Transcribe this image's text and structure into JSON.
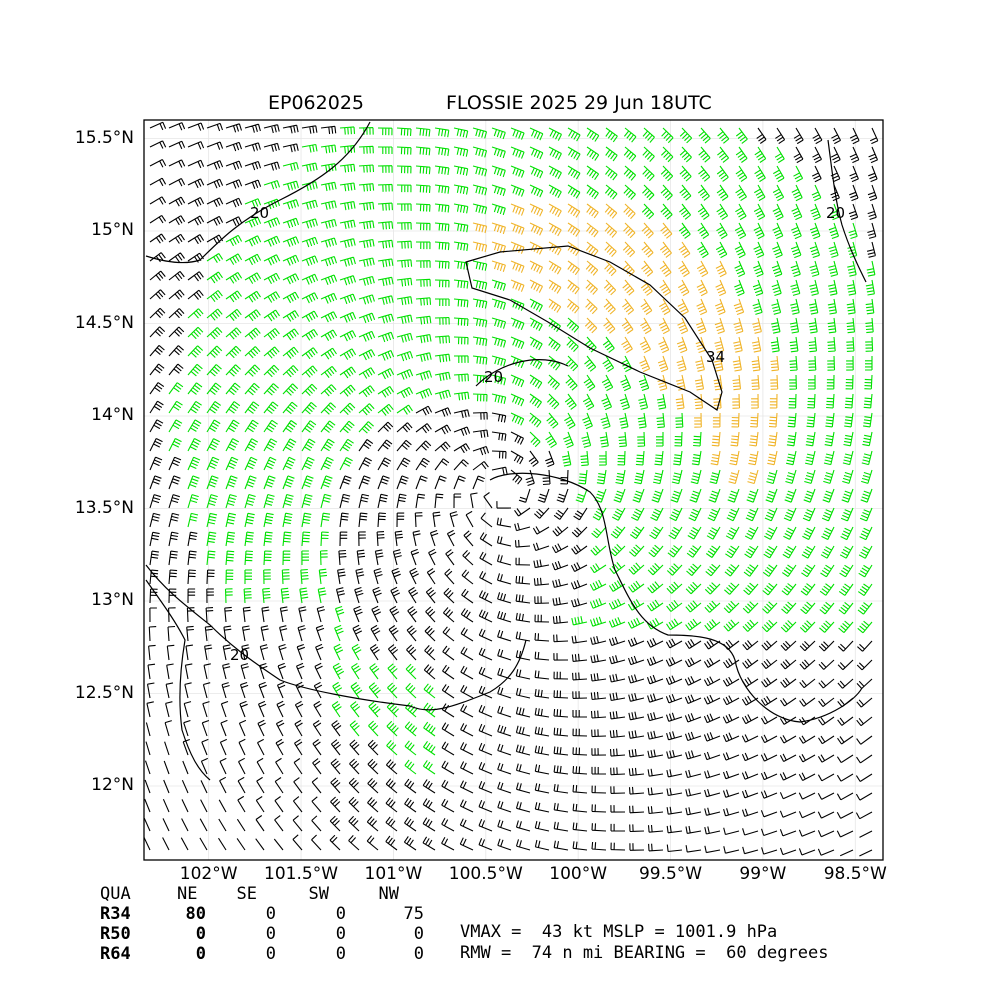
{
  "title": {
    "storm_id": "EP062025",
    "storm_name_time": "FLOSSIE 2025 29 Jun 18UTC"
  },
  "axes": {
    "lat_labels": [
      "15.5°N",
      "15°N",
      "14.5°N",
      "14°N",
      "13.5°N",
      "13°N",
      "12.5°N",
      "12°N"
    ],
    "lat_values": [
      15.5,
      15.0,
      14.5,
      14.0,
      13.5,
      13.0,
      12.5,
      12.0
    ],
    "lon_labels": [
      "102°W",
      "101.5°W",
      "101°W",
      "100.5°W",
      "100°W",
      "99.5°W",
      "99°W",
      "98.5°W"
    ],
    "lon_values": [
      -102.0,
      -101.5,
      -101.0,
      -100.5,
      -100.0,
      -99.5,
      -99.0,
      -98.5
    ],
    "lat_range": [
      11.6,
      15.6
    ],
    "lon_range": [
      -102.35,
      -98.35
    ]
  },
  "storm": {
    "center_lat": 13.6,
    "center_lon": -100.4
  },
  "contours": {
    "labels": [
      "20",
      "20",
      "20",
      "20",
      "34"
    ],
    "colors": {
      "lt34": "#000000",
      "ge34": "#00e000",
      "ge50": "#f0b429"
    }
  },
  "radii_table": {
    "header": [
      "QUA",
      "NE",
      "SE",
      "SW",
      "NW"
    ],
    "rows": [
      {
        "name": "R34",
        "values": [
          "80",
          "0",
          "0",
          "75"
        ]
      },
      {
        "name": "R50",
        "values": [
          "0",
          "0",
          "0",
          "0"
        ]
      },
      {
        "name": "R64",
        "values": [
          "0",
          "0",
          "0",
          "0"
        ]
      }
    ]
  },
  "info": {
    "line1": "VMAX =  43 kt MSLP = 1001.9 hPa",
    "line2": "RMW =  74 n mi BEARING =  60 degrees"
  }
}
